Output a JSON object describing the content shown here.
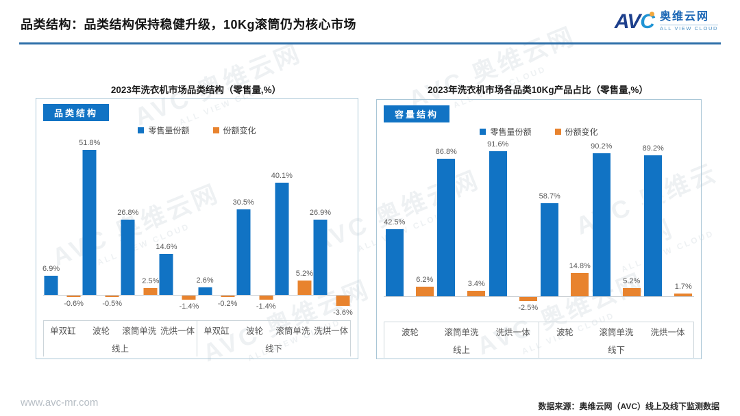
{
  "header": {
    "title": "品类结构：品类结构保持稳健升级，10Kg滚筒仍为核心市场",
    "logo": {
      "mark_av": "AV",
      "mark_c": "C",
      "name_cn": "奥维云网",
      "name_en": "ALL VIEW CLOUD"
    }
  },
  "watermark": {
    "line1": "AVC 奥维云网",
    "line2": "ALL VIEW CLOUD"
  },
  "footer": {
    "website": "www.avc-mr.com",
    "source": "数据来源：奥维云网（AVC）线上及线下监测数据"
  },
  "colors": {
    "series_blue": "#1173c4",
    "series_orange": "#e8832e",
    "tab_blue": "#1173c4",
    "rule_blue": "#2d6ea8"
  },
  "chart_data": [
    {
      "type": "bar",
      "tab": "品类结构",
      "title": "2023年洗衣机市场品类结构（零售量,%）",
      "legend": [
        "零售量份额",
        "份额变化"
      ],
      "legend_position": "top-center",
      "unit": "%",
      "ylim": [
        -5,
        55
      ],
      "grid": false,
      "groups": [
        {
          "label": "线上",
          "categories": [
            "单双缸",
            "波轮",
            "滚筒单洗",
            "洗烘一体"
          ],
          "series": [
            {
              "name": "零售量份额",
              "values": [
                6.9,
                51.8,
                26.8,
                14.6
              ]
            },
            {
              "name": "份额变化",
              "values": [
                -0.6,
                -0.5,
                2.5,
                -1.4
              ]
            }
          ]
        },
        {
          "label": "线下",
          "categories": [
            "单双缸",
            "波轮",
            "滚筒单洗",
            "洗烘一体"
          ],
          "series": [
            {
              "name": "零售量份额",
              "values": [
                2.6,
                30.5,
                40.1,
                26.9
              ]
            },
            {
              "name": "份额变化",
              "values": [
                -0.2,
                -1.4,
                5.2,
                -3.6
              ]
            }
          ]
        }
      ]
    },
    {
      "type": "bar",
      "tab": "容量结构",
      "title": "2023年洗衣机市场各品类10Kg产品占比（零售量,%）",
      "legend": [
        "零售量份额",
        "份额变化"
      ],
      "legend_position": "top-center",
      "unit": "%",
      "ylim": [
        -5,
        95
      ],
      "grid": false,
      "groups": [
        {
          "label": "线上",
          "categories": [
            "波轮",
            "滚筒单洗",
            "洗烘一体"
          ],
          "series": [
            {
              "name": "零售量份额",
              "values": [
                42.5,
                86.8,
                91.6
              ]
            },
            {
              "name": "份额变化",
              "values": [
                6.2,
                3.4,
                -2.5
              ]
            }
          ]
        },
        {
          "label": "线下",
          "categories": [
            "波轮",
            "滚筒单洗",
            "洗烘一体"
          ],
          "series": [
            {
              "name": "零售量份额",
              "values": [
                58.7,
                90.2,
                89.2
              ]
            },
            {
              "name": "份额变化",
              "values": [
                14.8,
                5.2,
                1.7
              ]
            }
          ]
        }
      ]
    }
  ]
}
